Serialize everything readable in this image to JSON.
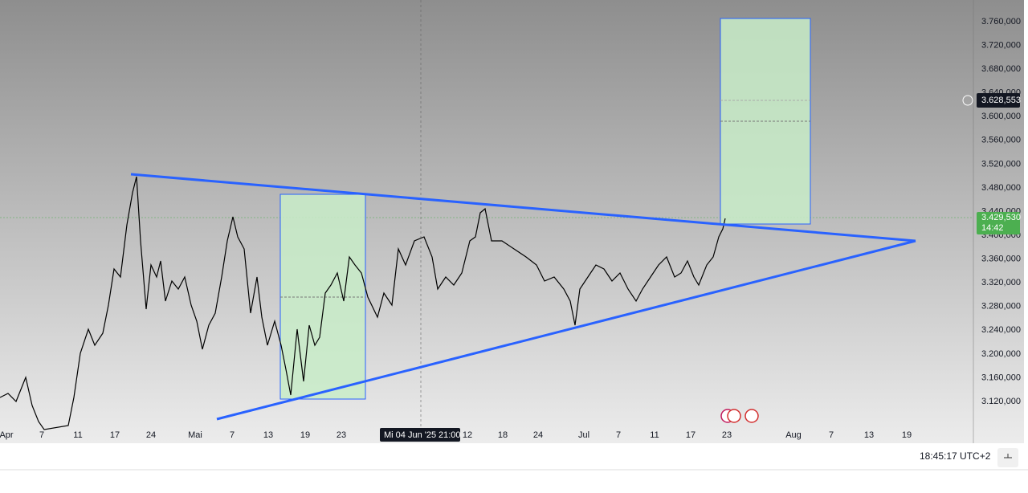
{
  "price_axis": {
    "ticks": [
      {
        "value": 3760000,
        "label": "3.760,000"
      },
      {
        "value": 3720000,
        "label": "3.720,000"
      },
      {
        "value": 3680000,
        "label": "3.680,000"
      },
      {
        "value": 3640000,
        "label": "3.640,000"
      },
      {
        "value": 3600000,
        "label": "3.600,000"
      },
      {
        "value": 3560000,
        "label": "3.560,000"
      },
      {
        "value": 3520000,
        "label": "3.520,000"
      },
      {
        "value": 3480000,
        "label": "3.480,000"
      },
      {
        "value": 3440000,
        "label": "3.440,000"
      },
      {
        "value": 3400000,
        "label": "3.400,000"
      },
      {
        "value": 3360000,
        "label": "3.360,000"
      },
      {
        "value": 3320000,
        "label": "3.320,000"
      },
      {
        "value": 3280000,
        "label": "3.280,000"
      },
      {
        "value": 3240000,
        "label": "3.240,000"
      },
      {
        "value": 3200000,
        "label": "3.200,000"
      },
      {
        "value": 3160000,
        "label": "3.160,000"
      },
      {
        "value": 3120000,
        "label": "3.120,000"
      }
    ]
  },
  "time_axis": {
    "labels": [
      "Apr",
      "7",
      "11",
      "17",
      "24",
      "Mai",
      "7",
      "13",
      "19",
      "23",
      "12",
      "18",
      "24",
      "Jul",
      "7",
      "11",
      "17",
      "23",
      "Aug",
      "7",
      "13",
      "19"
    ]
  },
  "crosshair": {
    "time_label": "Mi 04 Jun '25",
    "time": "21:00"
  },
  "tags": {
    "crosshair_price": {
      "value": 3628553,
      "label": "3.628,553"
    },
    "last_price": {
      "value": 3429530,
      "label": "3.429,530"
    },
    "countdown": "14:42"
  },
  "status_bar": {
    "clock": "18:45:17 UTC+2"
  }
}
